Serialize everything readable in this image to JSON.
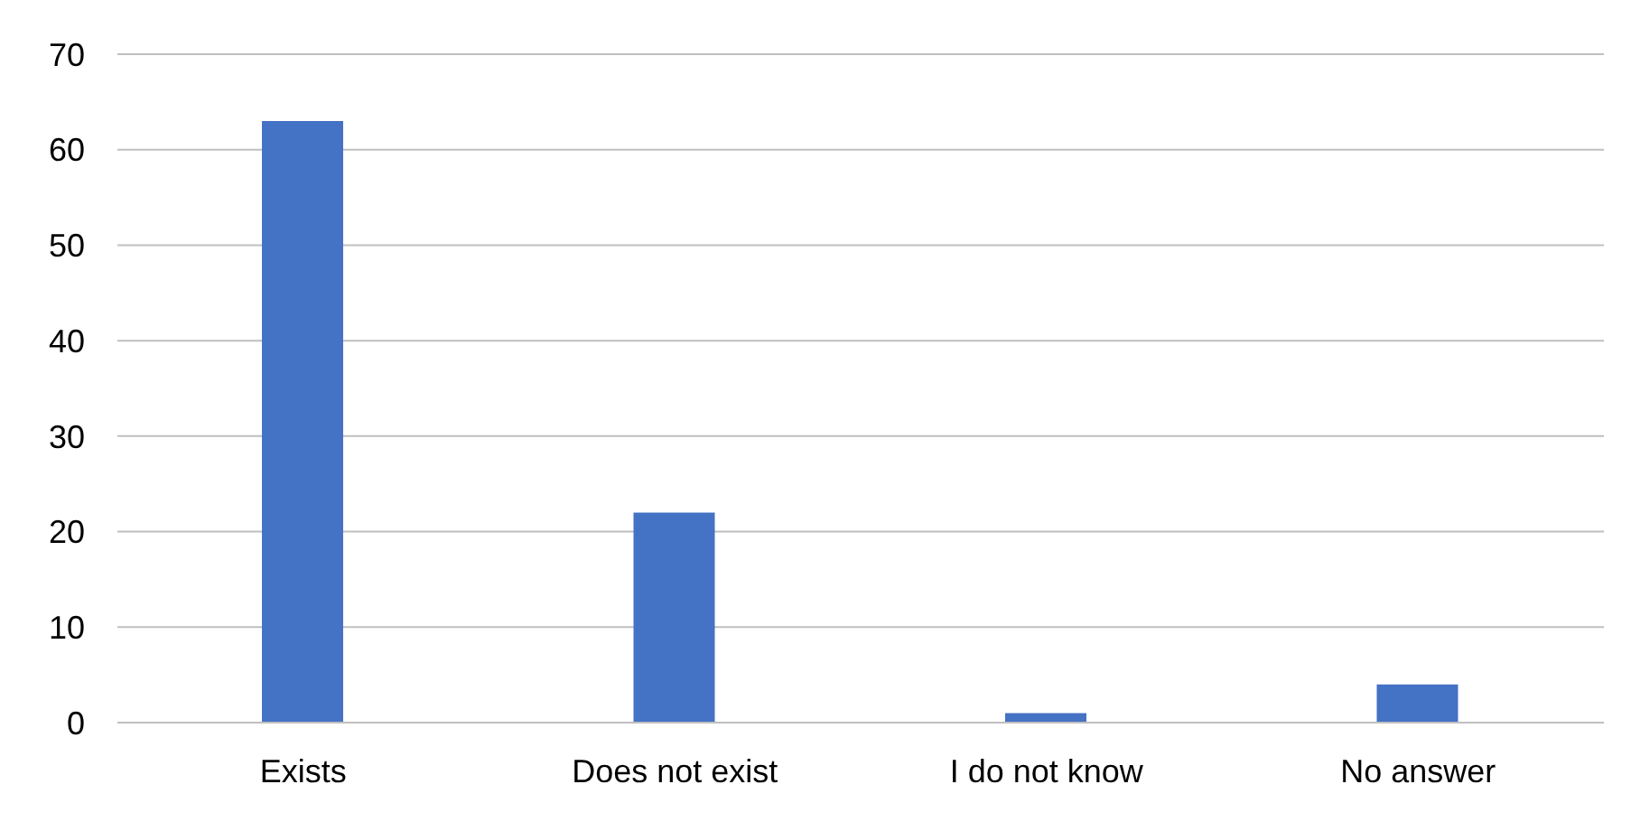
{
  "chart_data": {
    "type": "bar",
    "categories": [
      "Exists",
      "Does not exist",
      "I do not know",
      "No answer"
    ],
    "values": [
      63,
      22,
      1,
      4
    ],
    "color": "#4472c4",
    "ylim": [
      0,
      70
    ],
    "yticks": [
      0,
      10,
      20,
      30,
      40,
      50,
      60,
      70
    ],
    "grid": "y"
  }
}
